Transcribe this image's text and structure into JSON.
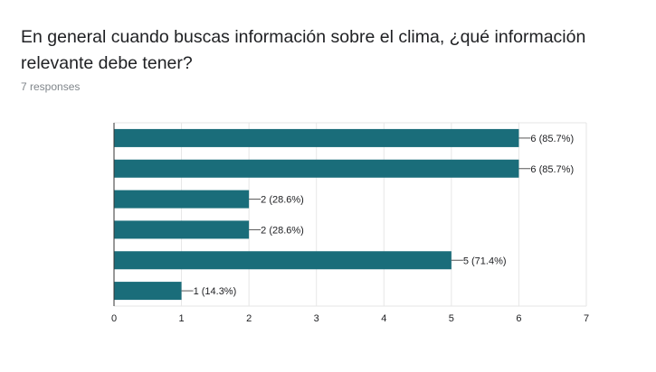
{
  "header": {
    "question": "En general cuando buscas información sobre el clima, ¿qué información relevante debe tener?",
    "responses": "7 responses"
  },
  "colors": {
    "bar": "#1a6d7a",
    "grid": "#e6e6e6",
    "axis": "#333333"
  },
  "chart_data": {
    "type": "bar",
    "orientation": "horizontal",
    "categories": [
      "",
      "",
      "",
      "",
      "",
      ""
    ],
    "values": [
      6,
      6,
      2,
      2,
      5,
      1
    ],
    "data_labels": [
      "6 (85.7%)",
      "6 (85.7%)",
      "2 (28.6%)",
      "2 (28.6%)",
      "5 (71.4%)",
      "1 (14.3%)"
    ],
    "xlim": [
      0,
      7
    ],
    "x_ticks": [
      0,
      1,
      2,
      3,
      4,
      5,
      6,
      7
    ],
    "grid": true,
    "title": "",
    "xlabel": "",
    "ylabel": ""
  }
}
